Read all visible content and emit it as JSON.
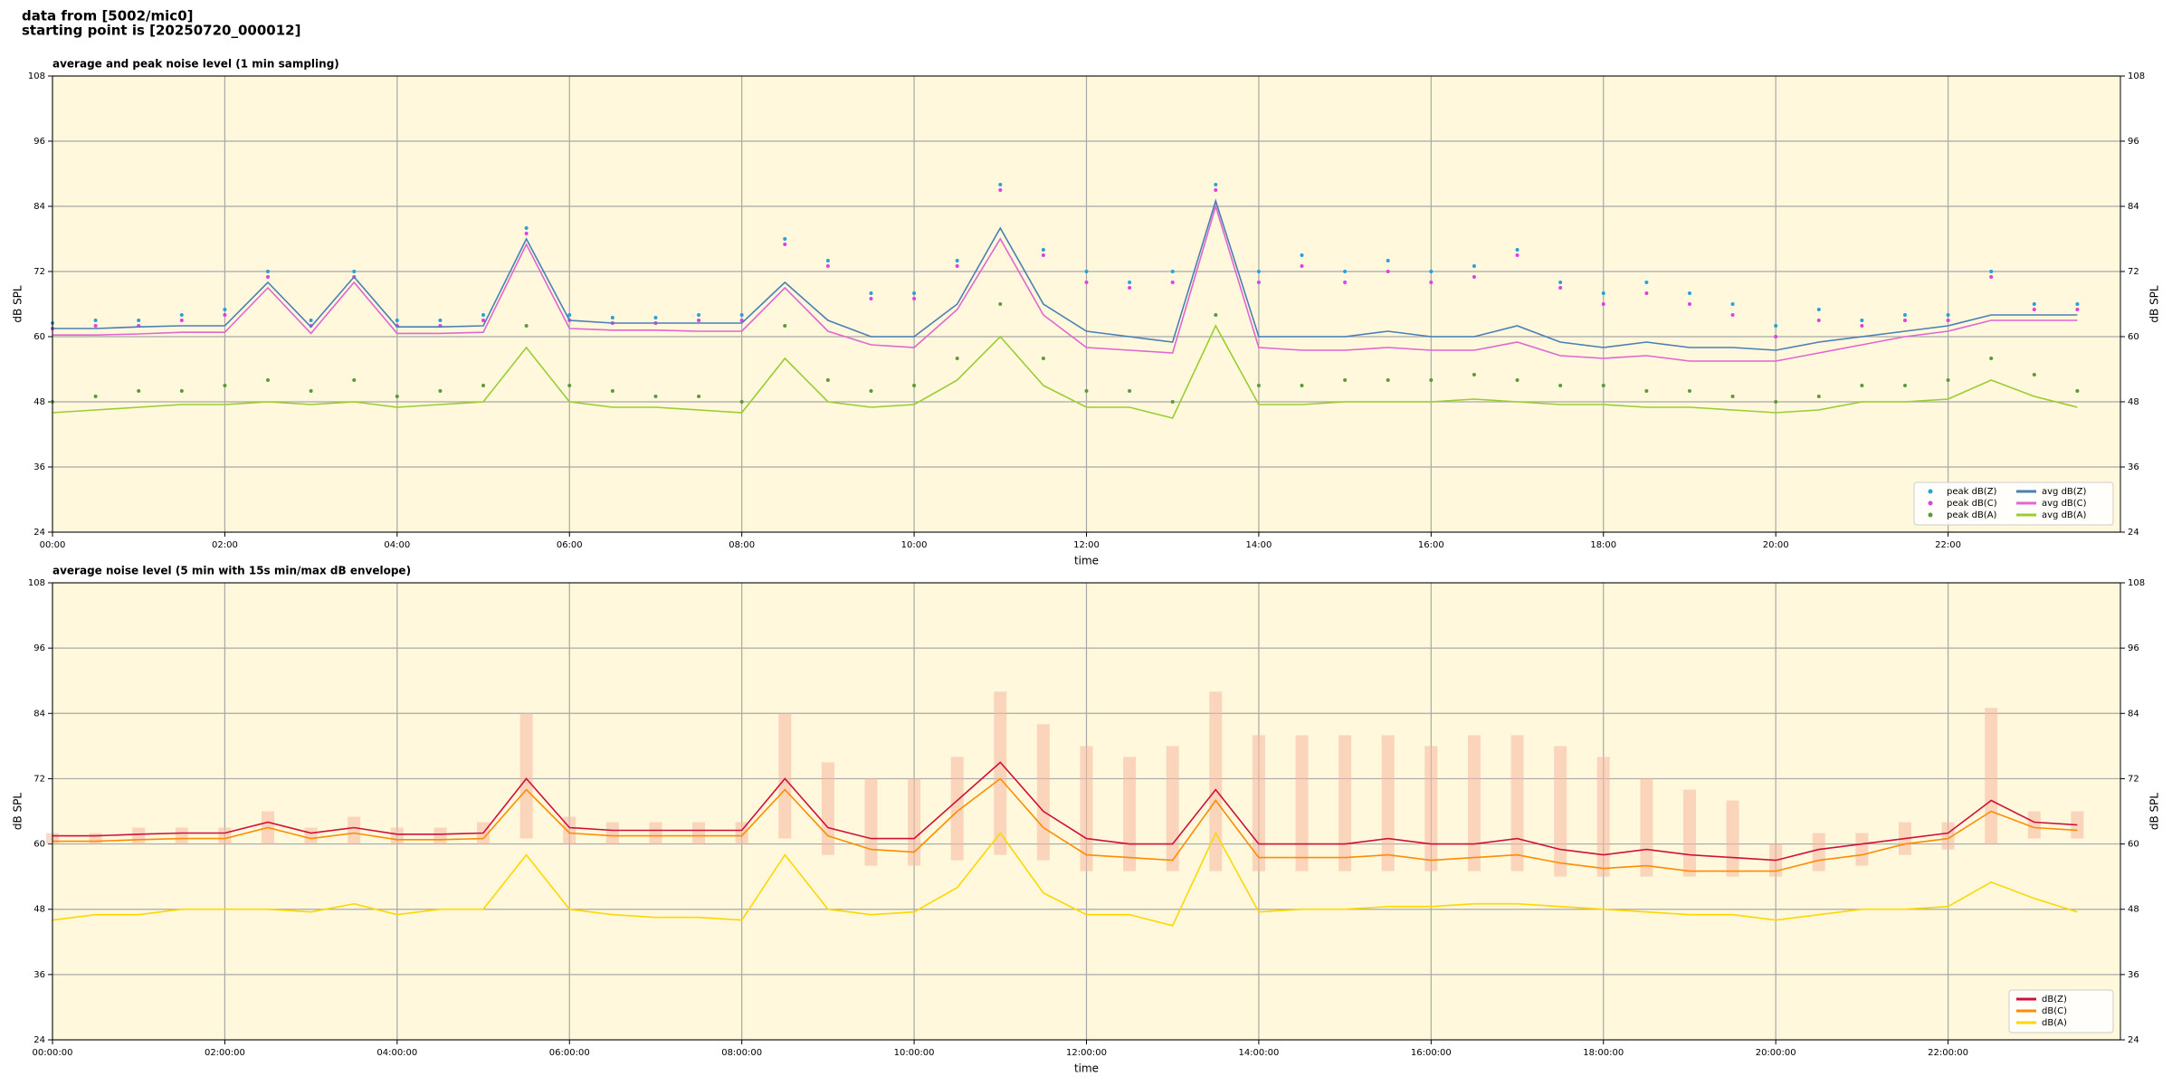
{
  "header": {
    "source": "data from [5002/mic0]",
    "start": "starting point is [20250720_000012]"
  },
  "chart_data": [
    {
      "type": "line",
      "title": "average and peak noise level (1 min sampling)",
      "x_label": "time",
      "y_label": "dB SPL",
      "xlim": [
        0,
        24
      ],
      "ylim": [
        24,
        108
      ],
      "yticks": [
        24,
        36,
        48,
        60,
        72,
        84,
        96,
        108
      ],
      "xticks": [
        {
          "value": 0,
          "label": "00:00"
        },
        {
          "value": 2,
          "label": "02:00"
        },
        {
          "value": 4,
          "label": "04:00"
        },
        {
          "value": 6,
          "label": "06:00"
        },
        {
          "value": 8,
          "label": "08:00"
        },
        {
          "value": 10,
          "label": "10:00"
        },
        {
          "value": 12,
          "label": "12:00"
        },
        {
          "value": 14,
          "label": "14:00"
        },
        {
          "value": 16,
          "label": "16:00"
        },
        {
          "value": 18,
          "label": "18:00"
        },
        {
          "value": 20,
          "label": "20:00"
        },
        {
          "value": 22,
          "label": "22:00"
        }
      ],
      "grid": true,
      "background": "#fff8dc",
      "legend": "lower right",
      "legend_columns": 2,
      "x": [
        0,
        0.5,
        1,
        1.5,
        2,
        2.5,
        3,
        3.5,
        4,
        4.5,
        5,
        5.5,
        6,
        6.5,
        7,
        7.5,
        8,
        8.5,
        9,
        9.5,
        10,
        10.5,
        11,
        11.5,
        12,
        12.5,
        13,
        13.5,
        14,
        14.5,
        15,
        15.5,
        16,
        16.5,
        17,
        17.5,
        18,
        18.5,
        19,
        19.5,
        20,
        20.5,
        21,
        21.5,
        22,
        22.5,
        23,
        23.5
      ],
      "series": [
        {
          "name": "peak dB(Z)",
          "type": "scatter",
          "color": "#2a9fd8",
          "values": [
            62.5,
            63,
            63,
            64,
            65,
            72,
            63,
            72,
            63,
            63,
            64,
            80,
            64,
            63.5,
            63.5,
            64,
            64,
            78,
            74,
            68,
            68,
            74,
            88,
            76,
            72,
            70,
            72,
            88,
            72,
            75,
            72,
            74,
            72,
            73,
            76,
            70,
            68,
            70,
            68,
            66,
            62,
            65,
            63,
            64,
            64,
            72,
            66,
            66
          ]
        },
        {
          "name": "peak dB(C)",
          "type": "scatter",
          "color": "#e040e0",
          "values": [
            61.5,
            62,
            62,
            63,
            64,
            71,
            62,
            71,
            62,
            62,
            63,
            79,
            63,
            62.5,
            62.5,
            63,
            63,
            77,
            73,
            67,
            67,
            73,
            87,
            75,
            70,
            69,
            70,
            87,
            70,
            73,
            70,
            72,
            70,
            71,
            75,
            69,
            66,
            68,
            66,
            64,
            60,
            63,
            62,
            63,
            63,
            71,
            65,
            65
          ]
        },
        {
          "name": "peak dB(A)",
          "type": "scatter",
          "color": "#5a9a3a",
          "values": [
            48,
            49,
            50,
            50,
            51,
            52,
            50,
            52,
            49,
            50,
            51,
            62,
            51,
            50,
            49,
            49,
            48,
            62,
            52,
            50,
            51,
            56,
            66,
            56,
            50,
            50,
            48,
            64,
            51,
            51,
            52,
            52,
            52,
            53,
            52,
            51,
            51,
            50,
            50,
            49,
            48,
            49,
            51,
            51,
            52,
            56,
            53,
            50
          ]
        },
        {
          "name": "avg dB(Z)",
          "type": "line",
          "color": "#4a7fb5",
          "values": [
            61.5,
            61.5,
            61.8,
            62,
            62,
            70,
            61.8,
            71,
            61.8,
            61.8,
            62,
            78,
            63,
            62.5,
            62.5,
            62.5,
            62.5,
            70,
            63,
            60,
            60,
            66,
            80,
            66,
            61,
            60,
            59,
            85,
            60,
            60,
            60,
            61,
            60,
            60,
            62,
            59,
            58,
            59,
            58,
            58,
            57.5,
            59,
            60,
            61,
            62,
            64,
            64,
            64
          ]
        },
        {
          "name": "avg dB(C)",
          "type": "line",
          "color": "#e066d0",
          "values": [
            60.3,
            60.3,
            60.5,
            60.8,
            60.8,
            69,
            60.6,
            70,
            60.6,
            60.6,
            60.8,
            77,
            61.5,
            61.2,
            61.2,
            61,
            61,
            69,
            61,
            58.5,
            58,
            65,
            78,
            64,
            58,
            57.5,
            57,
            84,
            58,
            57.5,
            57.5,
            58,
            57.5,
            57.5,
            59,
            56.5,
            56,
            56.5,
            55.5,
            55.5,
            55.5,
            57,
            58.5,
            60,
            61,
            63,
            63,
            63
          ]
        },
        {
          "name": "avg dB(A)",
          "type": "line",
          "color": "#9acd32",
          "values": [
            46,
            46.5,
            47,
            47.5,
            47.5,
            48,
            47.5,
            48,
            47,
            47.5,
            48,
            58,
            48,
            47,
            47,
            46.5,
            46,
            56,
            48,
            47,
            47.5,
            52,
            60,
            51,
            47,
            47,
            45,
            62,
            47.5,
            47.5,
            48,
            48,
            48,
            48.5,
            48,
            47.5,
            47.5,
            47,
            47,
            46.5,
            46,
            46.5,
            48,
            48,
            48.5,
            52,
            49,
            47
          ]
        }
      ]
    },
    {
      "type": "line",
      "title": "average noise level (5 min with 15s min/max dB envelope)",
      "x_label": "time",
      "y_label": "dB SPL",
      "xlim": [
        0,
        24
      ],
      "ylim": [
        24,
        108
      ],
      "yticks": [
        24,
        36,
        48,
        60,
        72,
        84,
        96,
        108
      ],
      "xticks": [
        {
          "value": 0,
          "label": "00:00:00"
        },
        {
          "value": 2,
          "label": "02:00:00"
        },
        {
          "value": 4,
          "label": "04:00:00"
        },
        {
          "value": 6,
          "label": "06:00:00"
        },
        {
          "value": 8,
          "label": "08:00:00"
        },
        {
          "value": 10,
          "label": "10:00:00"
        },
        {
          "value": 12,
          "label": "12:00:00"
        },
        {
          "value": 14,
          "label": "14:00:00"
        },
        {
          "value": 16,
          "label": "16:00:00"
        },
        {
          "value": 18,
          "label": "18:00:00"
        },
        {
          "value": 20,
          "label": "20:00:00"
        },
        {
          "value": 22,
          "label": "22:00:00"
        }
      ],
      "grid": true,
      "background": "#fff8dc",
      "legend": "lower right",
      "legend_columns": 1,
      "x": [
        0,
        0.5,
        1,
        1.5,
        2,
        2.5,
        3,
        3.5,
        4,
        4.5,
        5,
        5.5,
        6,
        6.5,
        7,
        7.5,
        8,
        8.5,
        9,
        9.5,
        10,
        10.5,
        11,
        11.5,
        12,
        12.5,
        13,
        13.5,
        14,
        14.5,
        15,
        15.5,
        16,
        16.5,
        17,
        17.5,
        18,
        18.5,
        19,
        19.5,
        20,
        20.5,
        21,
        21.5,
        22,
        22.5,
        23,
        23.5
      ],
      "envelope": {
        "color": "#f6b8a0",
        "max": [
          62,
          62,
          63,
          63,
          63,
          66,
          63,
          65,
          63,
          63,
          64,
          84,
          65,
          64,
          64,
          64,
          64,
          84,
          75,
          72,
          72,
          76,
          88,
          82,
          78,
          76,
          78,
          88,
          80,
          80,
          80,
          80,
          78,
          80,
          80,
          78,
          76,
          72,
          70,
          68,
          60,
          62,
          62,
          64,
          64,
          85,
          66,
          66
        ],
        "min": [
          60,
          60,
          60,
          60,
          60,
          60,
          60,
          60,
          60,
          60,
          60,
          61,
          60,
          60,
          60,
          60,
          60,
          61,
          58,
          56,
          56,
          57,
          58,
          57,
          55,
          55,
          55,
          55,
          55,
          55,
          55,
          55,
          55,
          55,
          55,
          54,
          54,
          54,
          54,
          54,
          54,
          55,
          56,
          58,
          59,
          60,
          61,
          61
        ]
      },
      "series": [
        {
          "name": "dB(Z)",
          "type": "line",
          "color": "#d0103a",
          "values": [
            61.5,
            61.5,
            61.8,
            62,
            62,
            64,
            62,
            63,
            61.8,
            61.8,
            62,
            72,
            63,
            62.5,
            62.5,
            62.5,
            62.5,
            72,
            63,
            61,
            61,
            68,
            75,
            66,
            61,
            60,
            60,
            70,
            60,
            60,
            60,
            61,
            60,
            60,
            61,
            59,
            58,
            59,
            58,
            57.5,
            57,
            59,
            60,
            61,
            62,
            68,
            64,
            63.5
          ]
        },
        {
          "name": "dB(C)",
          "type": "line",
          "color": "#ff8c00",
          "values": [
            60.5,
            60.5,
            60.8,
            61,
            61,
            63,
            61,
            62,
            60.8,
            60.8,
            61,
            70,
            62,
            61.5,
            61.5,
            61.5,
            61.5,
            70,
            61.5,
            59,
            58.5,
            66,
            72,
            63,
            58,
            57.5,
            57,
            68,
            57.5,
            57.5,
            57.5,
            58,
            57,
            57.5,
            58,
            56.5,
            55.5,
            56,
            55,
            55,
            55,
            57,
            58,
            60,
            61,
            66,
            63,
            62.5
          ]
        },
        {
          "name": "dB(A)",
          "type": "line",
          "color": "#ffd700",
          "values": [
            46,
            47,
            47,
            48,
            48,
            48,
            47.5,
            49,
            47,
            48,
            48,
            58,
            48,
            47,
            46.5,
            46.5,
            46,
            58,
            48,
            47,
            47.5,
            52,
            62,
            51,
            47,
            47,
            45,
            62,
            47.5,
            48,
            48,
            48.5,
            48.5,
            49,
            49,
            48.5,
            48,
            47.5,
            47,
            47,
            46,
            47,
            48,
            48,
            48.5,
            53,
            50,
            47.5
          ]
        }
      ]
    }
  ]
}
